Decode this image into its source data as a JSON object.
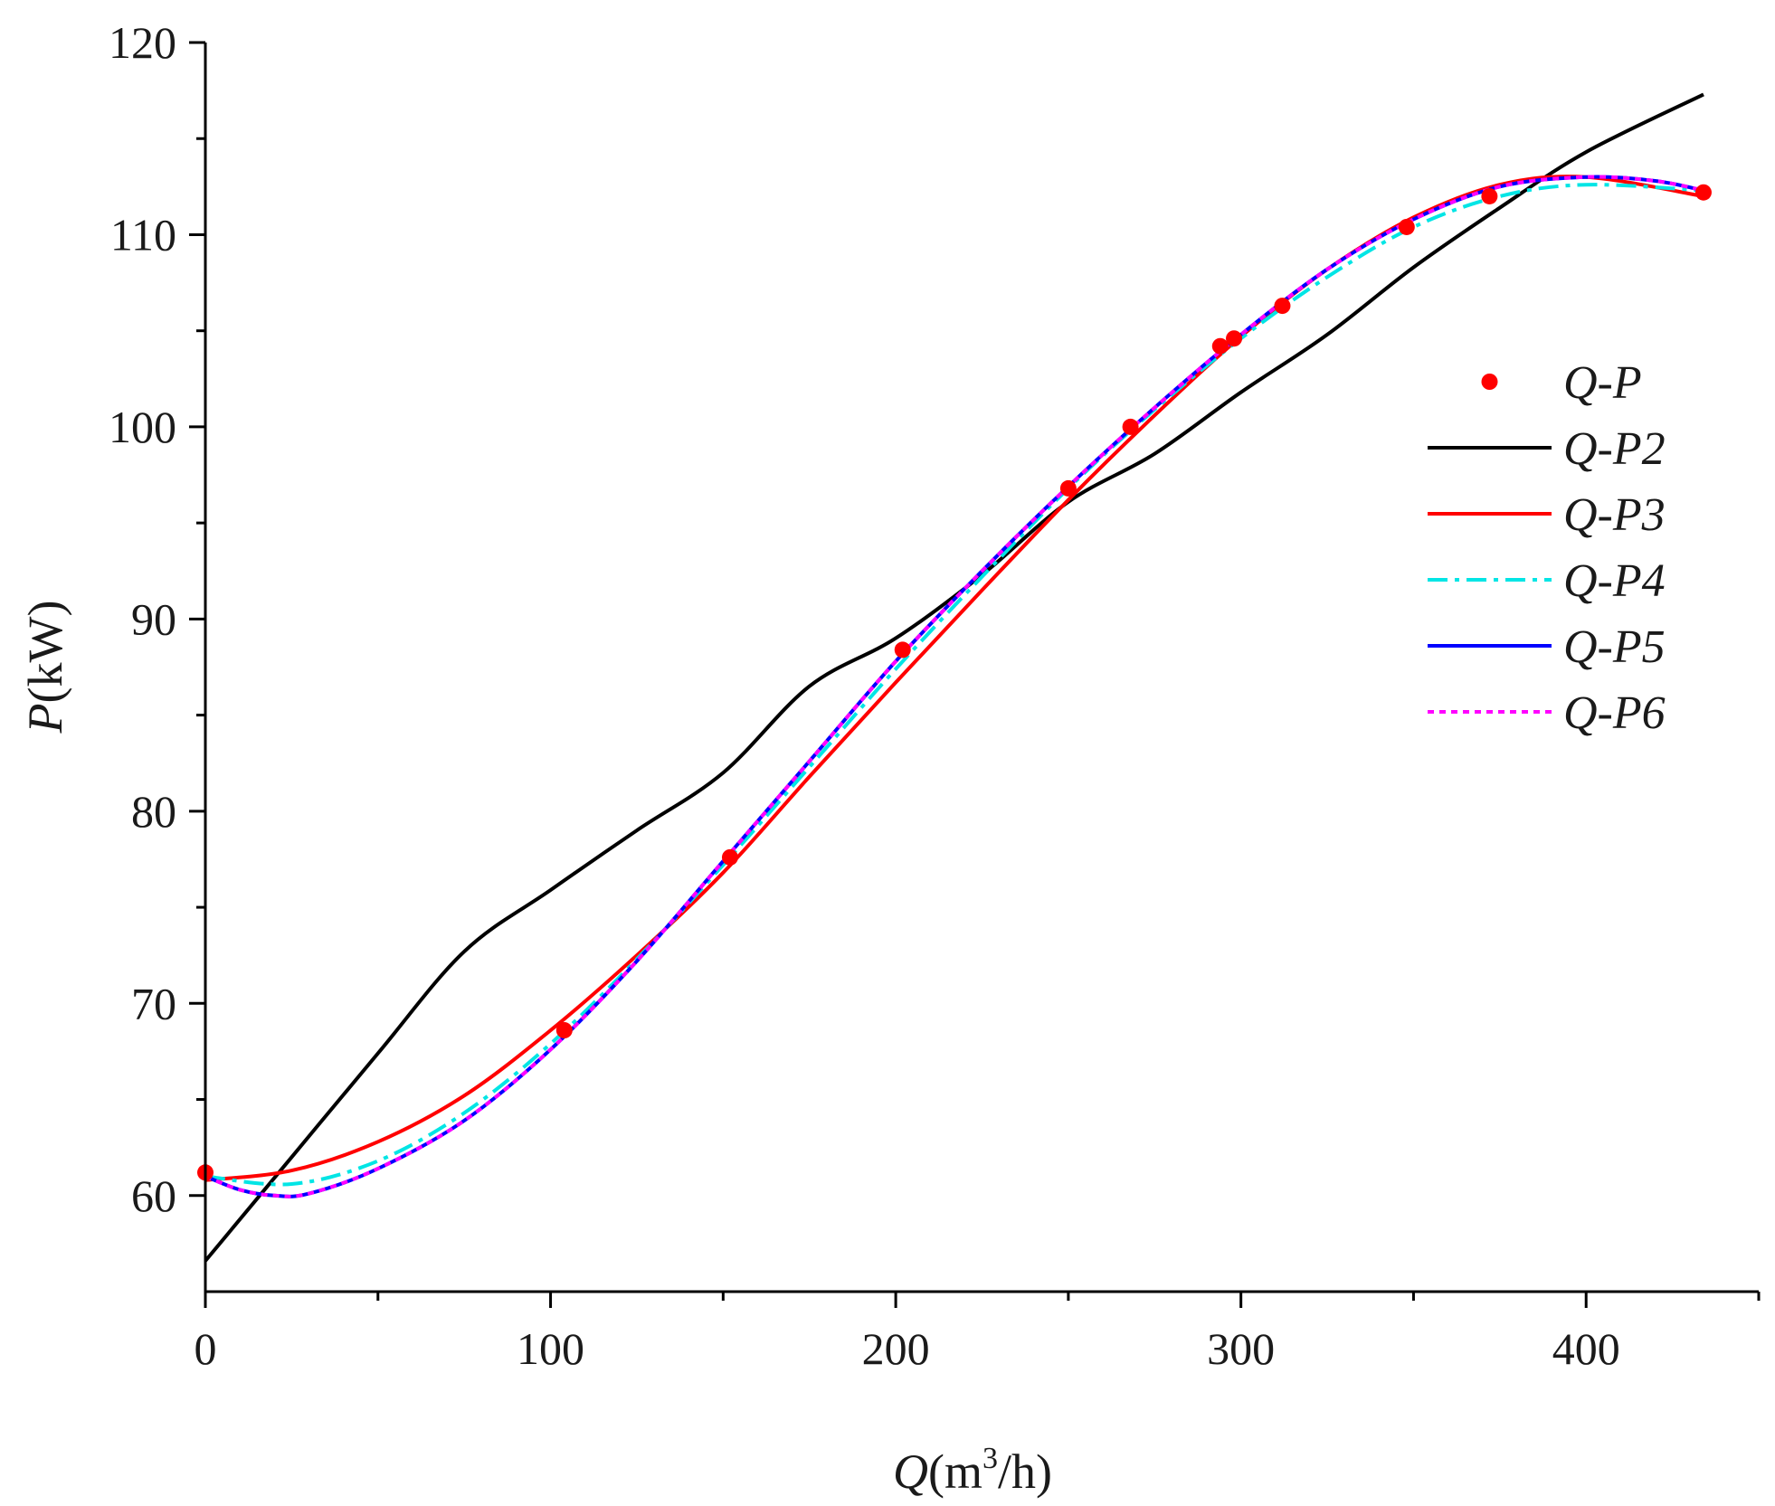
{
  "chart_data": {
    "type": "line",
    "title": "",
    "xlabel": {
      "var": "Q",
      "unit_prefix": "(m",
      "unit_sup": "3",
      "unit_suffix": "/h)"
    },
    "ylabel": {
      "var": "P",
      "unit": "(kW)"
    },
    "xlim": [
      0,
      450
    ],
    "ylim": [
      55,
      120
    ],
    "x_ticks": [
      0,
      100,
      200,
      300,
      400
    ],
    "x_minor_ticks": [
      50,
      150,
      250,
      350,
      450
    ],
    "y_ticks": [
      60,
      70,
      80,
      90,
      100,
      110,
      120
    ],
    "y_minor_ticks": [
      65,
      75,
      85,
      95,
      105,
      115
    ],
    "grid": false,
    "legend_position": "right",
    "series": [
      {
        "name": "Q-P",
        "kind": "scatter",
        "color": "#ff0000",
        "x": [
          0,
          104,
          152,
          202,
          250,
          268,
          294,
          298,
          312,
          348,
          372,
          434
        ],
        "y": [
          61.2,
          68.6,
          77.6,
          88.4,
          96.8,
          100.0,
          104.2,
          104.6,
          106.3,
          110.4,
          112.0,
          112.2
        ]
      },
      {
        "name": "Q-P2",
        "kind": "line",
        "color": "#000000",
        "dash": "",
        "x": [
          0,
          25,
          50,
          75,
          100,
          125,
          150,
          175,
          200,
          225,
          250,
          275,
          300,
          325,
          350,
          375,
          400,
          434
        ],
        "y": [
          56.6,
          62.0,
          67.4,
          72.7,
          75.9,
          79.0,
          82.0,
          86.5,
          89.0,
          92.3,
          96.1,
          98.6,
          101.8,
          104.8,
          108.3,
          111.4,
          114.3,
          117.3
        ]
      },
      {
        "name": "Q-P3",
        "kind": "line",
        "color": "#ff0000",
        "dash": "",
        "x": [
          0,
          25,
          50,
          75,
          100,
          125,
          150,
          175,
          200,
          225,
          250,
          275,
          300,
          325,
          350,
          375,
          400,
          434
        ],
        "y": [
          60.8,
          61.3,
          62.8,
          65.2,
          68.6,
          72.5,
          76.8,
          81.8,
          86.7,
          91.5,
          96.2,
          100.6,
          104.7,
          108.2,
          110.9,
          112.6,
          113.0,
          112.0
        ]
      },
      {
        "name": "Q-P4",
        "kind": "line",
        "color": "#00e5e5",
        "dash": "22 8 5 8",
        "x": [
          0,
          25,
          50,
          75,
          100,
          125,
          150,
          175,
          200,
          225,
          250,
          275,
          300,
          325,
          350,
          375,
          400,
          434
        ],
        "y": [
          61.0,
          60.6,
          61.8,
          64.3,
          67.9,
          72.3,
          77.2,
          82.3,
          87.4,
          92.2,
          96.8,
          100.9,
          104.6,
          107.8,
          110.4,
          112.0,
          112.6,
          112.3
        ]
      },
      {
        "name": "Q-P5",
        "kind": "line",
        "color": "#0000ff",
        "dash": "",
        "x": [
          0,
          10,
          20,
          30,
          50,
          75,
          100,
          125,
          150,
          175,
          200,
          225,
          250,
          275,
          300,
          325,
          350,
          375,
          400,
          420,
          434
        ],
        "y": [
          61.0,
          60.3,
          60.0,
          60.1,
          61.4,
          63.9,
          67.6,
          72.2,
          77.4,
          82.6,
          87.8,
          92.5,
          96.9,
          101.0,
          104.8,
          108.2,
          110.8,
          112.5,
          113.0,
          112.8,
          112.3
        ]
      },
      {
        "name": "Q-P6",
        "kind": "line",
        "color": "#ff00ff",
        "dash": "7 6",
        "x": [
          0,
          10,
          20,
          30,
          50,
          75,
          100,
          125,
          150,
          175,
          200,
          225,
          250,
          275,
          300,
          325,
          350,
          375,
          400,
          420,
          434
        ],
        "y": [
          61.0,
          60.3,
          60.0,
          60.1,
          61.4,
          63.9,
          67.6,
          72.2,
          77.4,
          82.6,
          87.8,
          92.5,
          96.9,
          101.0,
          104.8,
          108.2,
          110.8,
          112.5,
          113.0,
          112.8,
          112.3
        ]
      }
    ]
  }
}
